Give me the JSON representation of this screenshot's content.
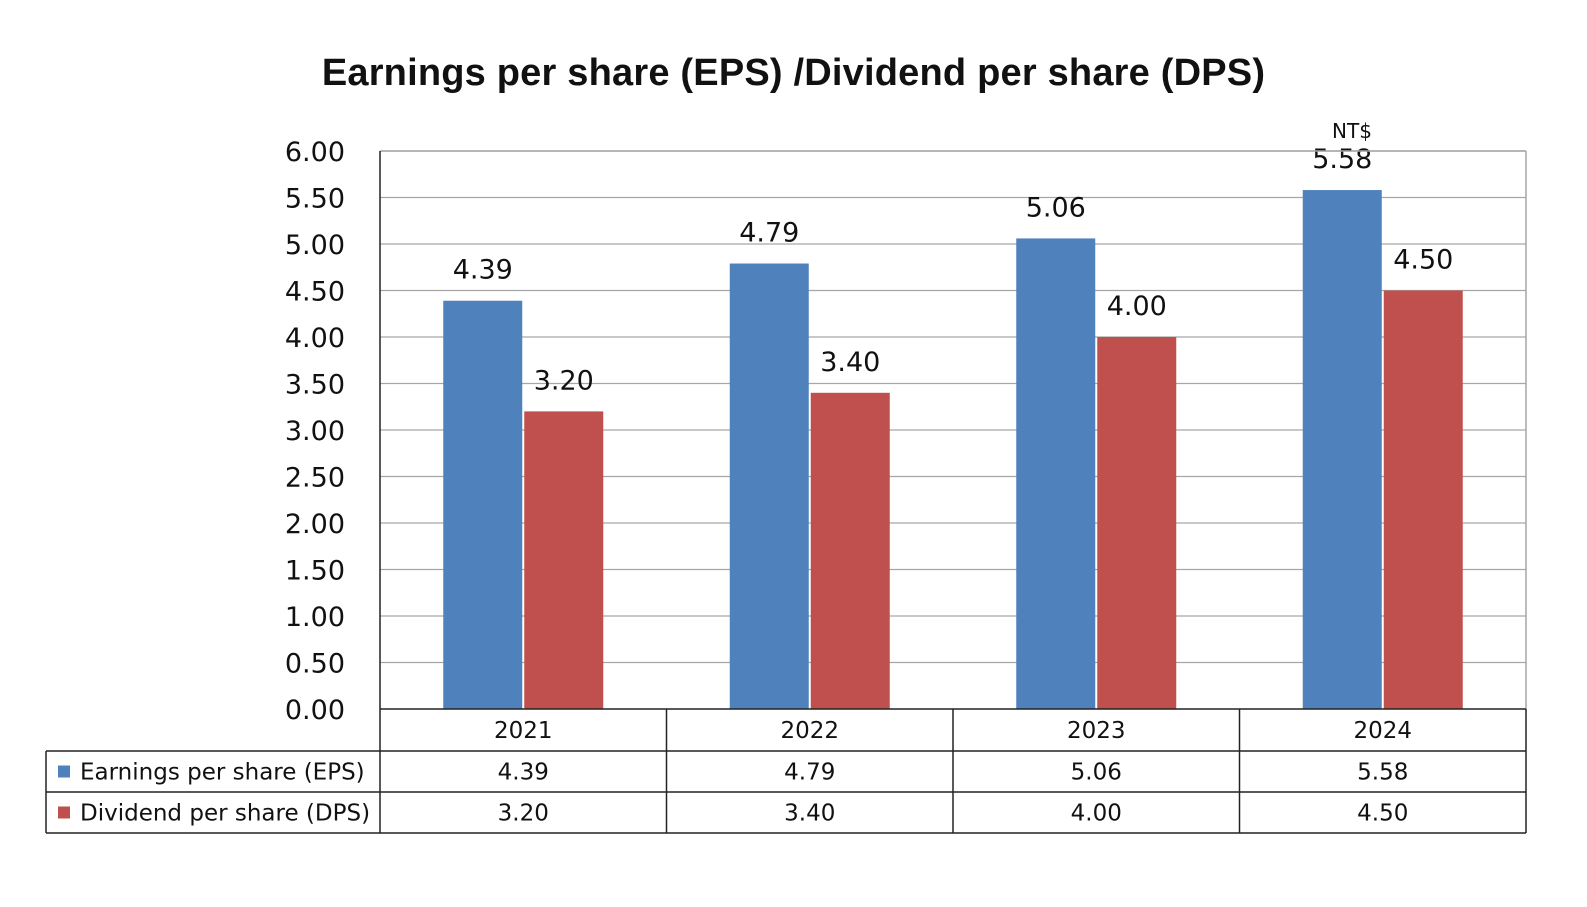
{
  "chart_data": {
    "type": "bar",
    "title": "Earnings per share (EPS) /Dividend per share (DPS)",
    "unit_label": "NT$",
    "categories": [
      "2021",
      "2022",
      "2023",
      "2024"
    ],
    "series": [
      {
        "name": "Earnings per share (EPS)",
        "color": "#4F81BD",
        "values": [
          4.39,
          4.79,
          5.06,
          5.58
        ],
        "labels": [
          "4.39",
          "4.79",
          "5.06",
          "5.58"
        ]
      },
      {
        "name": "Dividend per share (DPS)",
        "color": "#C0504D",
        "values": [
          3.2,
          3.4,
          4.0,
          4.5
        ],
        "labels": [
          "3.20",
          "3.40",
          "4.00",
          "4.50"
        ]
      }
    ],
    "ylim": [
      0,
      6
    ],
    "yticks": [
      "0.00",
      "0.50",
      "1.00",
      "1.50",
      "2.00",
      "2.50",
      "3.00",
      "3.50",
      "4.00",
      "4.50",
      "5.00",
      "5.50",
      "6.00"
    ],
    "grid": true,
    "legend": "data-table-below"
  }
}
